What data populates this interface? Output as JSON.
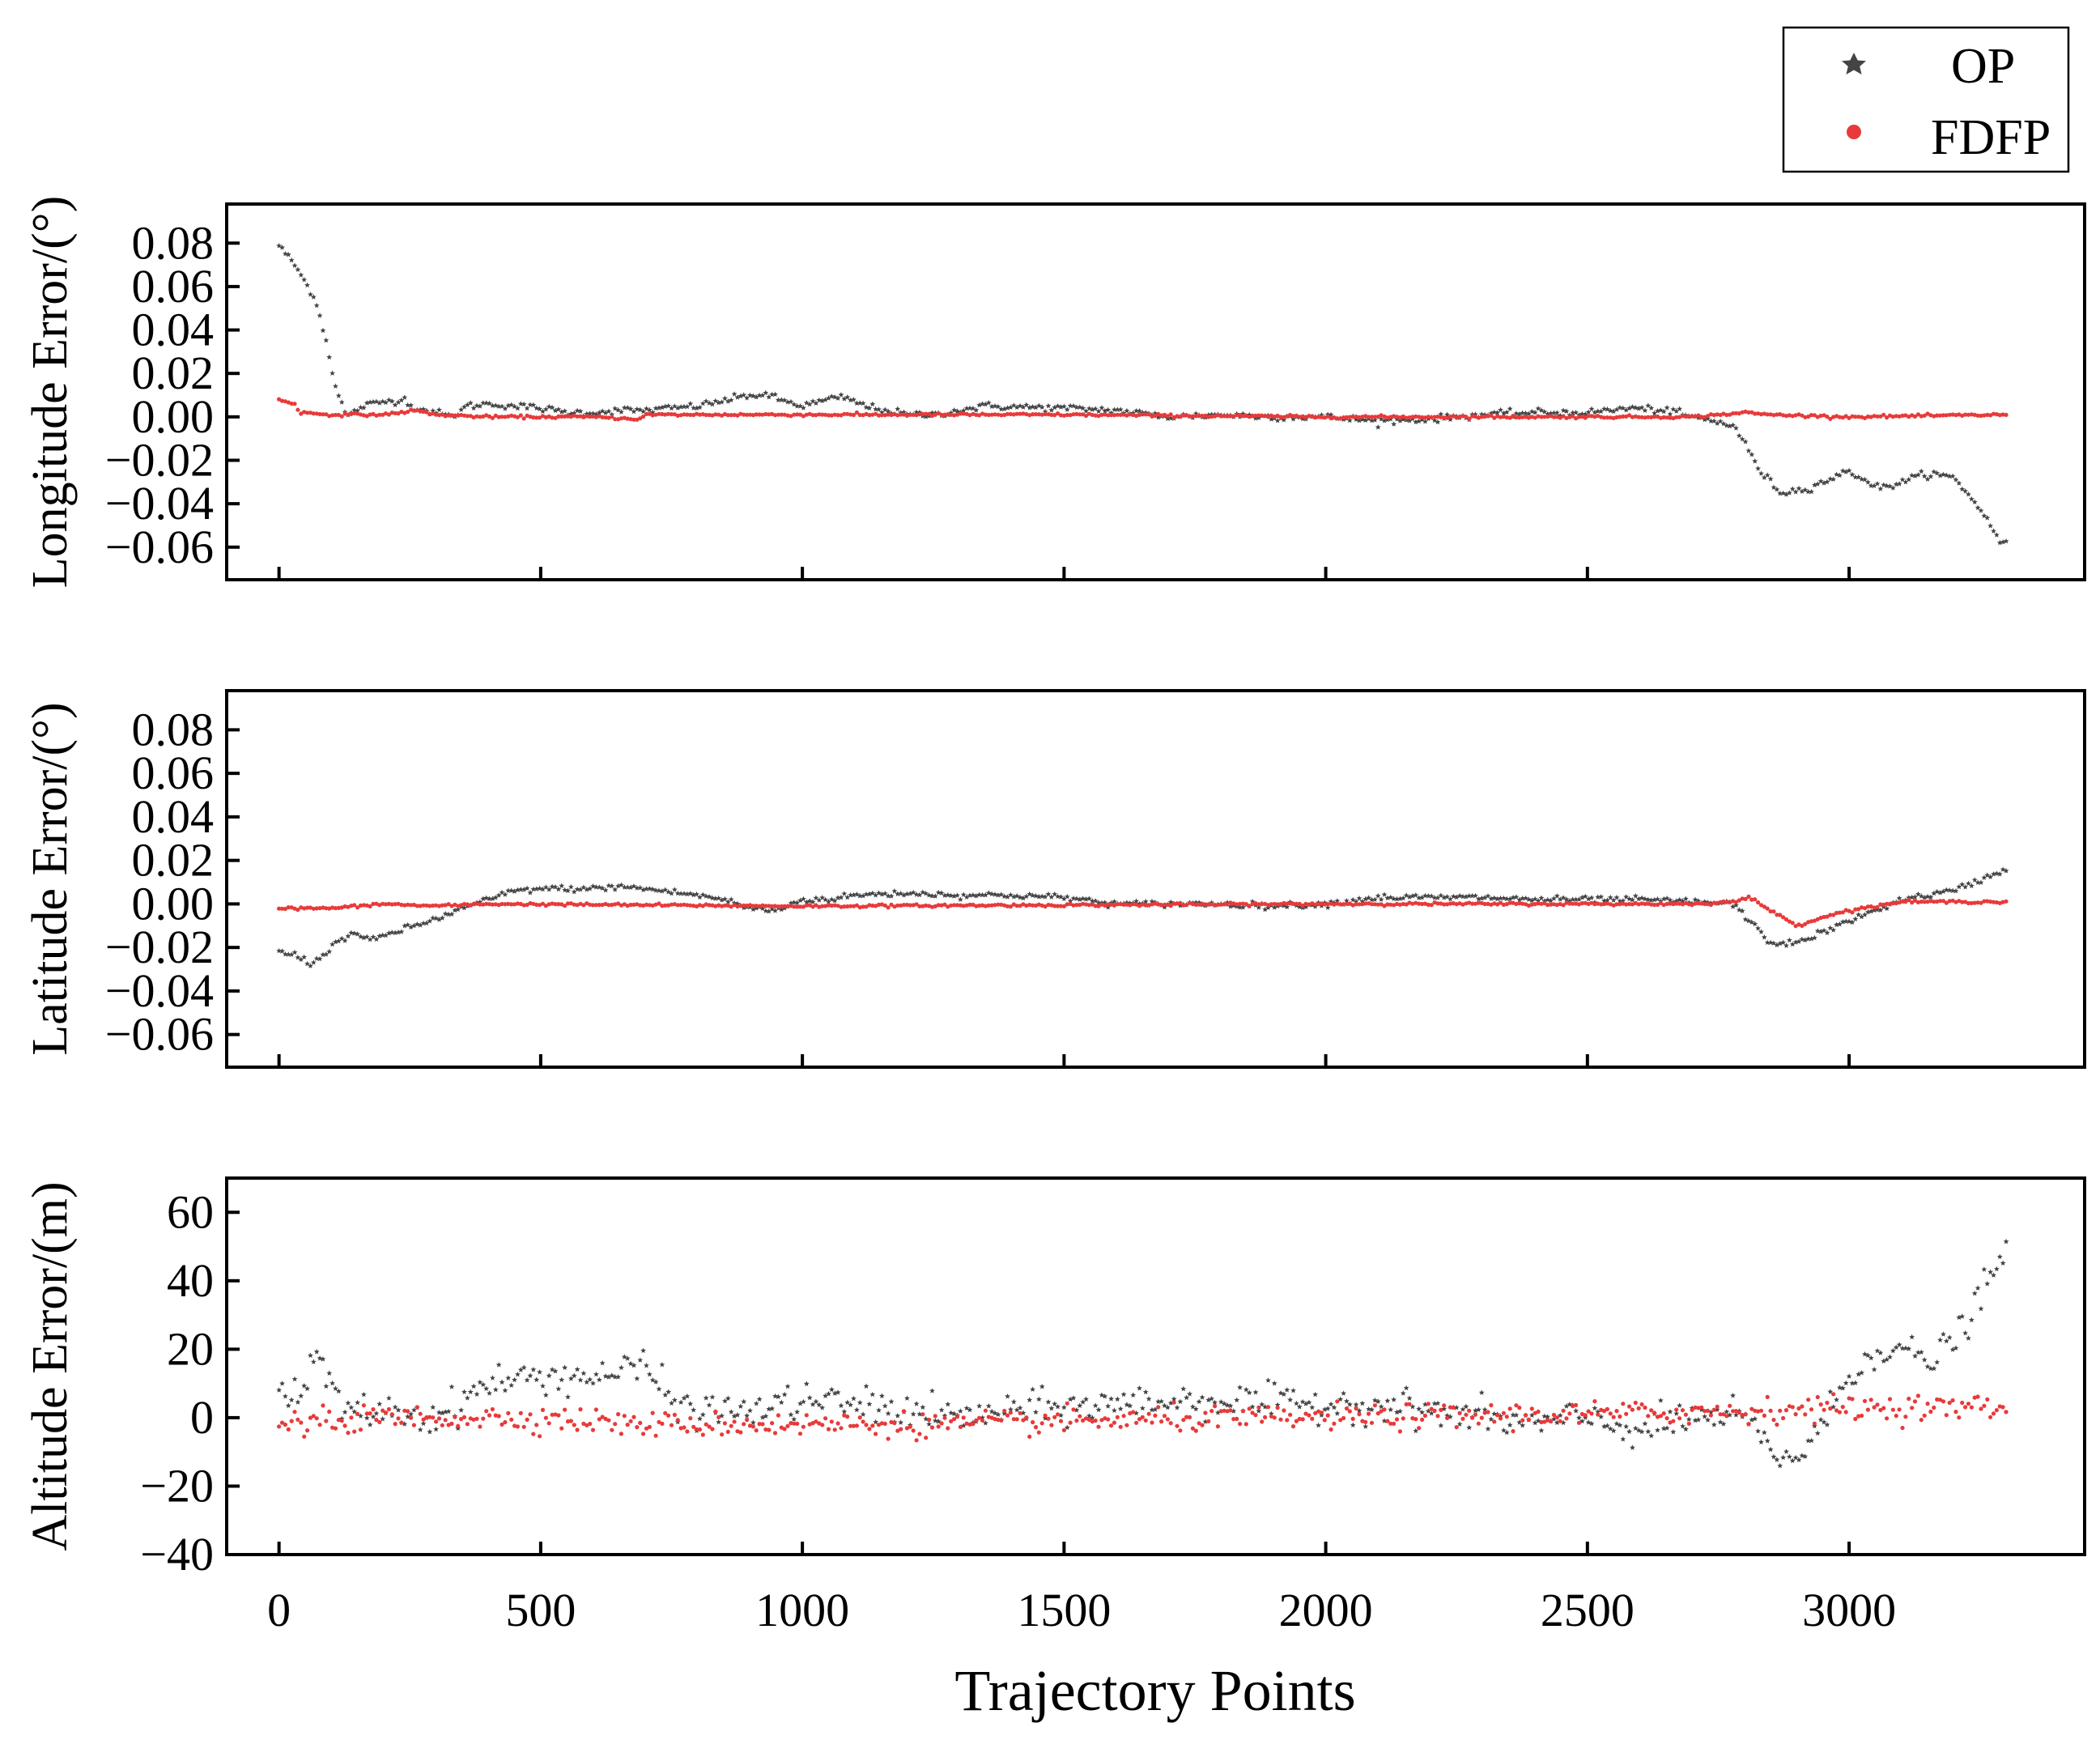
{
  "chart_data": {
    "type": "scatter",
    "x_label": "Trajectory Points",
    "x_range": [
      -100,
      3450
    ],
    "x_ticks": [
      0,
      500,
      1000,
      1500,
      2000,
      2500,
      3000
    ],
    "x_tick_labels": [
      "0",
      "500",
      "1000",
      "1500",
      "2000",
      "2500",
      "3000"
    ],
    "legend": [
      {
        "key": "op",
        "name": "OP",
        "color": "#444444",
        "marker": "star"
      },
      {
        "key": "fdfp",
        "name": "FDFP",
        "color": "#e83a3a",
        "marker": "circle"
      }
    ],
    "panels": [
      {
        "ylabel": "Longitude Error/(°)",
        "ylim": [
          -0.075,
          0.098
        ],
        "y_ticks": [
          0.08,
          0.06,
          0.04,
          0.02,
          0.0,
          -0.02,
          -0.04,
          -0.06
        ],
        "y_tick_labels": [
          "0.08",
          "0.06",
          "0.04",
          "0.02",
          "0.00",
          "−0.02",
          "−0.04",
          "−0.06"
        ],
        "noise": {
          "op": 0.0008,
          "fdfp": 0.0003
        },
        "series": {
          "op": [
            [
              0,
              0.079
            ],
            [
              30,
              0.07
            ],
            [
              70,
              0.054
            ],
            [
              90,
              0.035
            ],
            [
              110,
              0.012
            ],
            [
              130,
              0.0
            ],
            [
              160,
              0.005
            ],
            [
              200,
              0.007
            ],
            [
              240,
              0.008
            ],
            [
              260,
              0.004
            ],
            [
              300,
              0.002
            ],
            [
              330,
              0.0
            ],
            [
              360,
              0.005
            ],
            [
              400,
              0.006
            ],
            [
              450,
              0.005
            ],
            [
              500,
              0.004
            ],
            [
              550,
              0.002
            ],
            [
              600,
              0.002
            ],
            [
              650,
              0.003
            ],
            [
              700,
              0.003
            ],
            [
              800,
              0.005
            ],
            [
              900,
              0.01
            ],
            [
              930,
              0.01
            ],
            [
              970,
              0.007
            ],
            [
              1000,
              0.005
            ],
            [
              1050,
              0.008
            ],
            [
              1080,
              0.009
            ],
            [
              1120,
              0.005
            ],
            [
              1200,
              0.001
            ],
            [
              1250,
              0.001
            ],
            [
              1350,
              0.005
            ],
            [
              1500,
              0.004
            ],
            [
              1600,
              0.003
            ],
            [
              1700,
              0.0
            ],
            [
              1800,
              0.001
            ],
            [
              1900,
              0.0
            ],
            [
              2000,
              0.0
            ],
            [
              2100,
              -0.002
            ],
            [
              2200,
              -0.001
            ],
            [
              2300,
              0.001
            ],
            [
              2400,
              0.002
            ],
            [
              2500,
              0.002
            ],
            [
              2580,
              0.004
            ],
            [
              2650,
              0.003
            ],
            [
              2700,
              0.0
            ],
            [
              2780,
              -0.004
            ],
            [
              2800,
              -0.012
            ],
            [
              2830,
              -0.025
            ],
            [
              2870,
              -0.035
            ],
            [
              2920,
              -0.033
            ],
            [
              3000,
              -0.025
            ],
            [
              3060,
              -0.033
            ],
            [
              3100,
              -0.03
            ],
            [
              3150,
              -0.026
            ],
            [
              3200,
              -0.028
            ],
            [
              3250,
              -0.042
            ],
            [
              3290,
              -0.058
            ]
          ],
          "fdfp": [
            [
              0,
              0.008
            ],
            [
              30,
              0.006
            ],
            [
              40,
              0.002
            ],
            [
              100,
              0.001
            ],
            [
              200,
              0.001
            ],
            [
              260,
              0.003
            ],
            [
              300,
              0.001
            ],
            [
              400,
              0.0
            ],
            [
              500,
              0.0
            ],
            [
              600,
              0.0
            ],
            [
              690,
              -0.001
            ],
            [
              700,
              0.001
            ],
            [
              1000,
              0.001
            ],
            [
              1500,
              0.001
            ],
            [
              2000,
              0.0
            ],
            [
              2500,
              0.0
            ],
            [
              2700,
              0.0
            ],
            [
              2800,
              0.002
            ],
            [
              2850,
              0.001
            ],
            [
              3000,
              0.0
            ],
            [
              3300,
              0.001
            ]
          ]
        }
      },
      {
        "ylabel": "Latitude Error/(°)",
        "ylim": [
          -0.075,
          0.098
        ],
        "y_ticks": [
          0.08,
          0.06,
          0.04,
          0.02,
          0.0,
          -0.02,
          -0.04,
          -0.06
        ],
        "y_tick_labels": [
          "0.08",
          "0.06",
          "0.04",
          "0.02",
          "0.00",
          "−0.02",
          "−0.04",
          "−0.06"
        ],
        "noise": {
          "op": 0.0007,
          "fdfp": 0.0003
        },
        "series": {
          "op": [
            [
              0,
              -0.022
            ],
            [
              40,
              -0.024
            ],
            [
              60,
              -0.028
            ],
            [
              90,
              -0.022
            ],
            [
              110,
              -0.018
            ],
            [
              140,
              -0.013
            ],
            [
              170,
              -0.017
            ],
            [
              220,
              -0.013
            ],
            [
              300,
              -0.007
            ],
            [
              350,
              -0.002
            ],
            [
              400,
              0.002
            ],
            [
              450,
              0.006
            ],
            [
              500,
              0.007
            ],
            [
              550,
              0.007
            ],
            [
              600,
              0.007
            ],
            [
              650,
              0.008
            ],
            [
              700,
              0.007
            ],
            [
              800,
              0.004
            ],
            [
              850,
              0.002
            ],
            [
              900,
              -0.002
            ],
            [
              950,
              -0.003
            ],
            [
              1000,
              0.002
            ],
            [
              1050,
              0.002
            ],
            [
              1100,
              0.004
            ],
            [
              1200,
              0.005
            ],
            [
              1300,
              0.004
            ],
            [
              1400,
              0.004
            ],
            [
              1500,
              0.003
            ],
            [
              1600,
              0.0
            ],
            [
              1700,
              0.0
            ],
            [
              1800,
              0.0
            ],
            [
              1900,
              -0.001
            ],
            [
              2000,
              0.0
            ],
            [
              2100,
              0.003
            ],
            [
              2200,
              0.003
            ],
            [
              2300,
              0.003
            ],
            [
              2400,
              0.002
            ],
            [
              2500,
              0.002
            ],
            [
              2600,
              0.002
            ],
            [
              2700,
              0.001
            ],
            [
              2780,
              0.0
            ],
            [
              2810,
              -0.008
            ],
            [
              2850,
              -0.018
            ],
            [
              2900,
              -0.018
            ],
            [
              2950,
              -0.013
            ],
            [
              3000,
              -0.008
            ],
            [
              3050,
              -0.003
            ],
            [
              3100,
              0.002
            ],
            [
              3200,
              0.006
            ],
            [
              3300,
              0.016
            ]
          ],
          "fdfp": [
            [
              0,
              -0.002
            ],
            [
              100,
              -0.002
            ],
            [
              200,
              0.0
            ],
            [
              300,
              -0.001
            ],
            [
              400,
              0.0
            ],
            [
              1000,
              -0.001
            ],
            [
              2000,
              0.0
            ],
            [
              2700,
              0.0
            ],
            [
              2780,
              0.001
            ],
            [
              2810,
              0.003
            ],
            [
              2850,
              -0.003
            ],
            [
              2900,
              -0.01
            ],
            [
              2950,
              -0.006
            ],
            [
              3000,
              -0.003
            ],
            [
              3100,
              0.001
            ],
            [
              3300,
              0.001
            ]
          ]
        }
      },
      {
        "ylabel": "Altitude Error/(m)",
        "ylim": [
          -40,
          70
        ],
        "y_ticks": [
          60,
          40,
          20,
          0,
          -20,
          -40
        ],
        "y_tick_labels": [
          "60",
          "40",
          "20",
          "0",
          "−20",
          "−40"
        ],
        "noise": {
          "op": 2.5,
          "fdfp": 1.8
        },
        "series": {
          "op": [
            [
              0,
              8
            ],
            [
              40,
              5
            ],
            [
              60,
              14
            ],
            [
              80,
              18
            ],
            [
              100,
              8
            ],
            [
              120,
              2
            ],
            [
              200,
              2
            ],
            [
              300,
              0
            ],
            [
              350,
              5
            ],
            [
              400,
              10
            ],
            [
              500,
              12
            ],
            [
              600,
              12
            ],
            [
              700,
              15
            ],
            [
              750,
              5
            ],
            [
              800,
              2
            ],
            [
              900,
              2
            ],
            [
              1000,
              5
            ],
            [
              1100,
              4
            ],
            [
              1200,
              2
            ],
            [
              1300,
              0
            ],
            [
              1400,
              2
            ],
            [
              1500,
              3
            ],
            [
              1600,
              4
            ],
            [
              1700,
              5
            ],
            [
              1800,
              5
            ],
            [
              1900,
              4
            ],
            [
              2000,
              4
            ],
            [
              2100,
              4
            ],
            [
              2200,
              2
            ],
            [
              2300,
              0
            ],
            [
              2400,
              -2
            ],
            [
              2500,
              0
            ],
            [
              2600,
              -4
            ],
            [
              2700,
              0
            ],
            [
              2800,
              0
            ],
            [
              2850,
              -10
            ],
            [
              2900,
              -12
            ],
            [
              2950,
              -2
            ],
            [
              3000,
              12
            ],
            [
              3050,
              20
            ],
            [
              3100,
              20
            ],
            [
              3150,
              16
            ],
            [
              3200,
              22
            ],
            [
              3250,
              35
            ],
            [
              3300,
              48
            ]
          ],
          "fdfp": [
            [
              0,
              -2
            ],
            [
              100,
              -1
            ],
            [
              200,
              0
            ],
            [
              300,
              0
            ],
            [
              500,
              0
            ],
            [
              700,
              -2
            ],
            [
              1000,
              -2
            ],
            [
              1300,
              -2
            ],
            [
              1500,
              -1
            ],
            [
              2000,
              0
            ],
            [
              2500,
              1
            ],
            [
              2800,
              2
            ],
            [
              3000,
              3
            ],
            [
              3300,
              3
            ]
          ]
        }
      }
    ]
  }
}
